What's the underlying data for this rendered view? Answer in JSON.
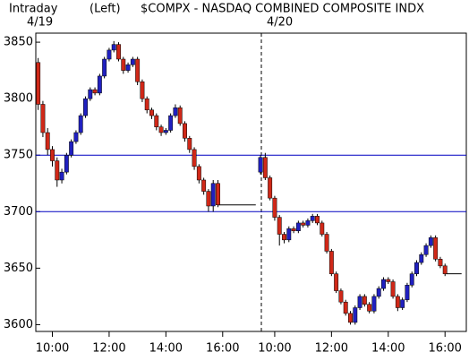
{
  "chart_data": {
    "type": "candlestick",
    "header": {
      "mode": "Intraday",
      "axis_side": "(Left)",
      "title": "$COMPX - NASDAQ COMBINED COMPOSITE INDX"
    },
    "date_labels": [
      "4/19",
      "4/20"
    ],
    "up_color": "#2020c0",
    "down_color": "#d02818",
    "candles": [
      [
        0,
        3832,
        3836,
        3790,
        3795
      ],
      [
        1,
        3795,
        3798,
        3766,
        3770
      ],
      [
        2,
        3770,
        3774,
        3750,
        3755
      ],
      [
        3,
        3755,
        3758,
        3740,
        3745
      ],
      [
        4,
        3745,
        3748,
        3722,
        3728
      ],
      [
        5,
        3728,
        3738,
        3725,
        3735
      ],
      [
        6,
        3735,
        3752,
        3733,
        3750
      ],
      [
        7,
        3750,
        3764,
        3748,
        3762
      ],
      [
        8,
        3762,
        3772,
        3760,
        3770
      ],
      [
        9,
        3770,
        3787,
        3768,
        3785
      ],
      [
        10,
        3785,
        3802,
        3783,
        3800
      ],
      [
        11,
        3800,
        3810,
        3798,
        3808
      ],
      [
        12,
        3808,
        3810,
        3803,
        3805
      ],
      [
        13,
        3805,
        3822,
        3803,
        3820
      ],
      [
        14,
        3820,
        3837,
        3818,
        3835
      ],
      [
        15,
        3835,
        3845,
        3833,
        3843
      ],
      [
        16,
        3843,
        3851,
        3841,
        3848
      ],
      [
        17,
        3848,
        3850,
        3833,
        3835
      ],
      [
        18,
        3835,
        3837,
        3822,
        3825
      ],
      [
        19,
        3825,
        3832,
        3823,
        3830
      ],
      [
        20,
        3830,
        3837,
        3828,
        3835
      ],
      [
        21,
        3835,
        3837,
        3812,
        3815
      ],
      [
        22,
        3815,
        3817,
        3797,
        3800
      ],
      [
        23,
        3800,
        3802,
        3787,
        3790
      ],
      [
        24,
        3790,
        3792,
        3782,
        3785
      ],
      [
        25,
        3785,
        3787,
        3772,
        3775
      ],
      [
        26,
        3775,
        3777,
        3767,
        3770
      ],
      [
        27,
        3770,
        3774,
        3768,
        3772
      ],
      [
        28,
        3772,
        3787,
        3770,
        3785
      ],
      [
        29,
        3785,
        3795,
        3783,
        3792
      ],
      [
        30,
        3792,
        3794,
        3776,
        3778
      ],
      [
        31,
        3778,
        3780,
        3762,
        3765
      ],
      [
        32,
        3765,
        3767,
        3752,
        3755
      ],
      [
        33,
        3755,
        3757,
        3737,
        3740
      ],
      [
        34,
        3740,
        3742,
        3725,
        3728
      ],
      [
        35,
        3728,
        3730,
        3715,
        3718
      ],
      [
        36,
        3718,
        3720,
        3700,
        3705
      ],
      [
        37,
        3705,
        3728,
        3700,
        3725
      ],
      [
        38,
        3725,
        3728,
        3704,
        3706
      ],
      [
        47,
        3735,
        3750,
        3733,
        3748
      ],
      [
        48,
        3748,
        3752,
        3728,
        3730
      ],
      [
        49,
        3730,
        3732,
        3710,
        3712
      ],
      [
        50,
        3712,
        3714,
        3692,
        3695
      ],
      [
        51,
        3695,
        3697,
        3670,
        3680
      ],
      [
        52,
        3680,
        3682,
        3672,
        3675
      ],
      [
        53,
        3675,
        3687,
        3673,
        3685
      ],
      [
        54,
        3685,
        3687,
        3681,
        3683
      ],
      [
        55,
        3683,
        3692,
        3681,
        3690
      ],
      [
        56,
        3690,
        3692,
        3686,
        3688
      ],
      [
        57,
        3688,
        3694,
        3686,
        3692
      ],
      [
        58,
        3692,
        3698,
        3690,
        3696
      ],
      [
        59,
        3696,
        3698,
        3688,
        3690
      ],
      [
        60,
        3690,
        3692,
        3678,
        3680
      ],
      [
        61,
        3680,
        3682,
        3663,
        3665
      ],
      [
        62,
        3665,
        3667,
        3643,
        3645
      ],
      [
        63,
        3645,
        3647,
        3628,
        3630
      ],
      [
        64,
        3630,
        3632,
        3618,
        3620
      ],
      [
        65,
        3620,
        3622,
        3608,
        3610
      ],
      [
        66,
        3610,
        3612,
        3600,
        3602
      ],
      [
        67,
        3602,
        3617,
        3600,
        3615
      ],
      [
        68,
        3615,
        3627,
        3613,
        3625
      ],
      [
        69,
        3625,
        3627,
        3616,
        3618
      ],
      [
        70,
        3618,
        3620,
        3610,
        3612
      ],
      [
        71,
        3612,
        3627,
        3610,
        3625
      ],
      [
        72,
        3625,
        3634,
        3623,
        3632
      ],
      [
        73,
        3632,
        3642,
        3630,
        3640
      ],
      [
        74,
        3640,
        3642,
        3636,
        3638
      ],
      [
        75,
        3638,
        3640,
        3623,
        3625
      ],
      [
        76,
        3625,
        3627,
        3612,
        3615
      ],
      [
        77,
        3615,
        3624,
        3613,
        3622
      ],
      [
        78,
        3622,
        3637,
        3620,
        3635
      ],
      [
        79,
        3635,
        3647,
        3633,
        3645
      ],
      [
        80,
        3645,
        3657,
        3643,
        3655
      ],
      [
        81,
        3655,
        3664,
        3653,
        3662
      ],
      [
        82,
        3662,
        3672,
        3660,
        3670
      ],
      [
        83,
        3670,
        3679,
        3668,
        3677
      ],
      [
        84,
        3677,
        3679,
        3656,
        3658
      ],
      [
        85,
        3658,
        3660,
        3650,
        3652
      ],
      [
        86,
        3652,
        3654,
        3643,
        3645
      ]
    ],
    "series": [
      {
        "x": [
          38,
          46
        ],
        "values": [
          3706,
          3706
        ],
        "color": "#000000"
      },
      {
        "x": [
          86,
          89.5
        ],
        "values": [
          3645,
          3645
        ],
        "color": "#000000"
      }
    ],
    "hlines": [
      3750,
      3700
    ],
    "hline_color": "#0000c0",
    "xlim": [
      -0.5,
      90.5
    ],
    "xticks": [
      {
        "value": 3,
        "label": "10:00"
      },
      {
        "value": 15,
        "label": "12:00"
      },
      {
        "value": 27,
        "label": "14:00"
      },
      {
        "value": 39,
        "label": "16:00"
      },
      {
        "value": 50,
        "label": "10:00"
      },
      {
        "value": 62,
        "label": "12:00"
      },
      {
        "value": 74,
        "label": "14:00"
      },
      {
        "value": 86,
        "label": "16:00"
      }
    ],
    "ylim": [
      3594,
      3858
    ],
    "yticks": [
      3600,
      3650,
      3700,
      3750,
      3800,
      3850
    ]
  }
}
